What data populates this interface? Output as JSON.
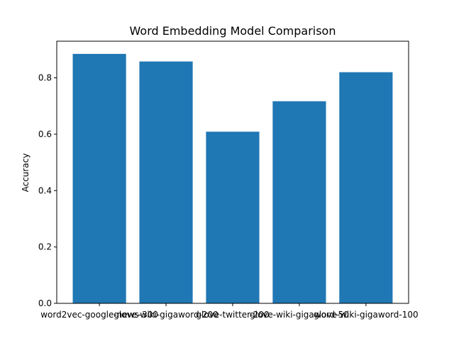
{
  "chart_data": {
    "type": "bar",
    "title": "Word Embedding Model Comparison",
    "xlabel": "",
    "ylabel": "Accuracy",
    "categories": [
      "word2vec-google-news-300",
      "glove-wiki-gigaword-200",
      "glove-twitter-200",
      "glove-wiki-gigaword-50",
      "glove-wiki-gigaword-100"
    ],
    "values": [
      0.885,
      0.858,
      0.609,
      0.717,
      0.82
    ],
    "ylim": [
      0,
      0.93
    ],
    "yticks": [
      0.0,
      0.2,
      0.4,
      0.6,
      0.8
    ],
    "ytick_labels": [
      "0.0",
      "0.2",
      "0.4",
      "0.6",
      "0.8"
    ],
    "bar_color": "#1f77b4",
    "grid": false,
    "legend": false
  }
}
